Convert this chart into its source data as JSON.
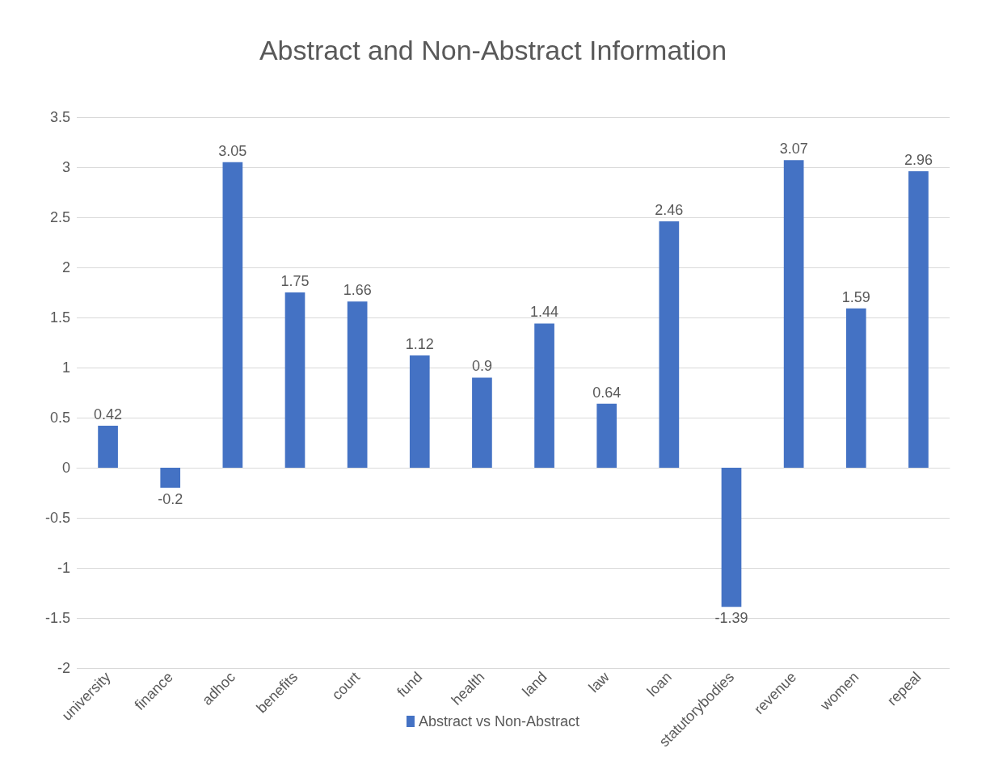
{
  "chart_data": {
    "type": "bar",
    "title": "Abstract and Non-Abstract Information",
    "categories": [
      "university",
      "finance",
      "adhoc",
      "benefits",
      "court",
      "fund",
      "health",
      "land",
      "law",
      "loan",
      "statutorybodies",
      "revenue",
      "women",
      "repeal"
    ],
    "series": [
      {
        "name": "Abstract vs Non-Abstract",
        "color": "#4472c4",
        "values": [
          0.42,
          -0.2,
          3.05,
          1.75,
          1.66,
          1.12,
          0.9,
          1.44,
          0.64,
          2.46,
          -1.39,
          3.07,
          1.59,
          2.96
        ]
      }
    ],
    "ylim": [
      -2,
      3.5
    ],
    "yticks": [
      -2,
      -1.5,
      -1,
      -0.5,
      0,
      0.5,
      1,
      1.5,
      2,
      2.5,
      3,
      3.5
    ],
    "grid": "y",
    "legend": "bottom",
    "data_labels": true
  }
}
